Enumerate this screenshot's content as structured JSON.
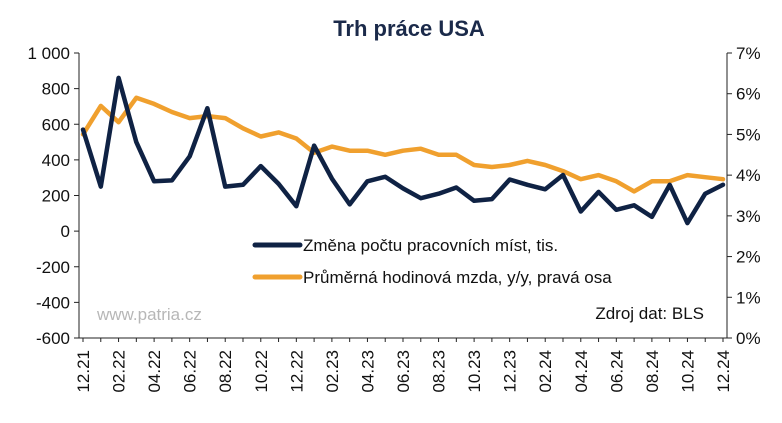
{
  "chart_data": {
    "type": "line",
    "title": "Trh práce USA",
    "watermark": "www.patria.cz",
    "source": "Zdroj dat: BLS",
    "x": [
      "12.21",
      "01.22",
      "02.22",
      "03.22",
      "04.22",
      "05.22",
      "06.22",
      "07.22",
      "08.22",
      "09.22",
      "10.22",
      "11.22",
      "12.22",
      "01.23",
      "02.23",
      "03.23",
      "04.23",
      "05.23",
      "06.23",
      "07.23",
      "08.23",
      "09.23",
      "10.23",
      "11.23",
      "12.23",
      "01.24",
      "02.24",
      "03.24",
      "04.24",
      "05.24",
      "06.24",
      "07.24",
      "08.24",
      "09.24",
      "10.24",
      "11.24",
      "12.24"
    ],
    "xticks": [
      "12.21",
      "02.22",
      "04.22",
      "06.22",
      "08.22",
      "10.22",
      "12.22",
      "02.23",
      "04.23",
      "06.23",
      "08.23",
      "10.23",
      "12.23",
      "02.24",
      "04.24",
      "06.24",
      "08.24",
      "10.24",
      "12.24"
    ],
    "yticks_left": [
      "1 000",
      "800",
      "600",
      "400",
      "200",
      "0",
      "-200",
      "-400",
      "-600"
    ],
    "yticks_right": [
      "7%",
      "6%",
      "5%",
      "4%",
      "3%",
      "2%",
      "1%",
      "0%"
    ],
    "ylim_left": [
      -600,
      1000
    ],
    "ylim_right": [
      0,
      7
    ],
    "series": [
      {
        "name": "Změna počtu pracovních míst, tis.",
        "axis": "left",
        "color": "#0f2244",
        "values": [
          570,
          250,
          860,
          500,
          280,
          285,
          420,
          690,
          250,
          260,
          365,
          265,
          140,
          480,
          295,
          150,
          280,
          305,
          240,
          185,
          210,
          245,
          170,
          180,
          290,
          260,
          235,
          315,
          110,
          220,
          120,
          145,
          80,
          260,
          45,
          210,
          260
        ]
      },
      {
        "name": "Průměrná hodinová mzda, y/y, pravá osa",
        "axis": "right",
        "color": "#f0a02e",
        "values": [
          5.0,
          5.7,
          5.3,
          5.9,
          5.75,
          5.55,
          5.4,
          5.45,
          5.4,
          5.15,
          4.95,
          5.05,
          4.9,
          4.55,
          4.7,
          4.6,
          4.6,
          4.5,
          4.6,
          4.65,
          4.5,
          4.5,
          4.25,
          4.2,
          4.25,
          4.35,
          4.25,
          4.1,
          3.9,
          4.0,
          3.85,
          3.6,
          3.85,
          3.85,
          4.0,
          3.95,
          3.9
        ]
      }
    ]
  }
}
